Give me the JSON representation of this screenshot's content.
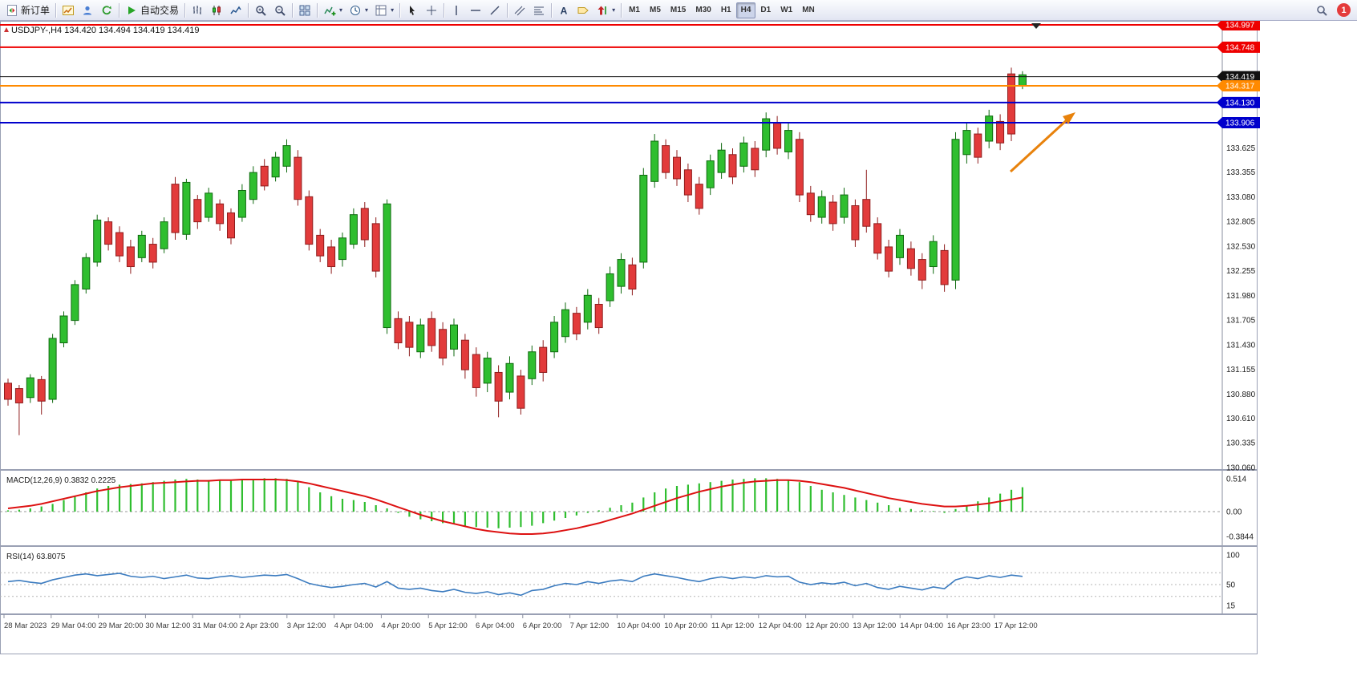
{
  "toolbar": {
    "new_order_label": "新订单",
    "auto_trading_label": "自动交易",
    "buttons": [
      {
        "name": "new-order-button",
        "icon": "new-order-icon",
        "label_key": "new_order_label"
      },
      {
        "sep": true
      },
      {
        "name": "new-chart-button",
        "icon": "new-chart-icon"
      },
      {
        "name": "profiles-button",
        "icon": "profiles-icon"
      },
      {
        "name": "market-watch-button",
        "icon": "market-watch-icon"
      },
      {
        "sep": true
      },
      {
        "name": "auto-trading-button",
        "icon": "play-icon",
        "label_key": "auto_trading_label"
      },
      {
        "sep": true
      },
      {
        "name": "bar-chart-button",
        "icon": "bar-chart-icon"
      },
      {
        "name": "candlestick-chart-button",
        "icon": "candlestick-icon"
      },
      {
        "name": "line-chart-button",
        "icon": "line-chart-icon"
      },
      {
        "sep": true
      },
      {
        "name": "zoom-in-button",
        "icon": "zoom-in-icon"
      },
      {
        "name": "zoom-out-button",
        "icon": "zoom-out-icon"
      },
      {
        "sep": true
      },
      {
        "name": "tile-windows-button",
        "icon": "tile-windows-icon"
      },
      {
        "sep": true
      },
      {
        "name": "indicators-button",
        "icon": "indicators-icon",
        "dropdown": true
      },
      {
        "name": "periods-button",
        "icon": "clock-icon",
        "dropdown": true
      },
      {
        "name": "templates-button",
        "icon": "template-icon",
        "dropdown": true
      },
      {
        "sep": true
      },
      {
        "name": "cursor-button",
        "icon": "cursor-icon"
      },
      {
        "name": "crosshair-button",
        "icon": "crosshair-icon"
      },
      {
        "sep": true
      },
      {
        "name": "vertical-line-button",
        "icon": "vertical-line-icon"
      },
      {
        "name": "horizontal-line-button",
        "icon": "horizontal-line-icon"
      },
      {
        "name": "trendline-button",
        "icon": "trendline-icon"
      },
      {
        "sep": true
      },
      {
        "name": "equidistant-channel-button",
        "icon": "channel-icon"
      },
      {
        "name": "fibonacci-button",
        "icon": "fibonacci-icon"
      },
      {
        "sep": true
      },
      {
        "name": "text-button",
        "icon": "text-icon"
      },
      {
        "name": "text-label-button",
        "icon": "label-icon"
      },
      {
        "name": "arrows-button",
        "icon": "arrow-tools-icon",
        "dropdown": true
      },
      {
        "sep": true
      }
    ],
    "timeframes": [
      "M1",
      "M5",
      "M15",
      "M30",
      "H1",
      "H4",
      "D1",
      "W1",
      "MN"
    ],
    "active_timeframe": "H4",
    "notification_count": "1"
  },
  "chart": {
    "title": "USDJPY-,H4 134.420 134.494 134.419 134.419",
    "colors": {
      "bull": "#2fbe2f",
      "bull_border": "#0f6a0f",
      "bear": "#e23b3b",
      "bear_border": "#8f1d1d",
      "macd_hist": "#2fbe2f",
      "macd_signal": "#dd1111",
      "rsi_line": "#3b7bbf",
      "arrow": "#e8820c",
      "level_red": "#ee0000",
      "level_orange": "#ff8a00",
      "level_blue": "#0000cc",
      "current_price": "#111111"
    },
    "levels": [
      {
        "price": 134.997,
        "label": "134.997",
        "color": "#ee0000",
        "width": 2
      },
      {
        "price": 134.748,
        "label": "134.748",
        "color": "#ee0000",
        "width": 2
      },
      {
        "price": 134.419,
        "label": "134.419",
        "color": "#111111",
        "width": 1
      },
      {
        "price": 134.317,
        "label": "134.317",
        "color": "#ff8a00",
        "width": 2
      },
      {
        "price": 134.13,
        "label": "134.130",
        "color": "#0000cc",
        "width": 2
      },
      {
        "price": 133.906,
        "label": "133.906",
        "color": "#0000cc",
        "width": 2
      }
    ],
    "price_axis": [
      "133.625",
      "133.355",
      "133.080",
      "132.805",
      "132.530",
      "132.255",
      "131.980",
      "131.705",
      "131.430",
      "131.155",
      "130.880",
      "130.610",
      "130.335",
      "130.060"
    ],
    "time_axis": [
      "28 Mar 2023",
      "29 Mar 04:00",
      "29 Mar 20:00",
      "30 Mar 12:00",
      "31 Mar 04:00",
      "2 Apr 23:00",
      "3 Apr 12:00",
      "4 Apr 04:00",
      "4 Apr 20:00",
      "5 Apr 12:00",
      "6 Apr 04:00",
      "6 Apr 20:00",
      "7 Apr 12:00",
      "10 Apr 04:00",
      "10 Apr 20:00",
      "11 Apr 12:00",
      "12 Apr 04:00",
      "12 Apr 20:00",
      "13 Apr 12:00",
      "14 Apr 04:00",
      "16 Apr 23:00",
      "17 Apr 12:00"
    ],
    "candles": [
      [
        131.05,
        131.0,
        130.82,
        130.75,
        "r"
      ],
      [
        130.98,
        130.94,
        130.78,
        130.42,
        "r"
      ],
      [
        131.1,
        131.06,
        130.84,
        130.78,
        "g"
      ],
      [
        131.08,
        131.04,
        130.8,
        130.65,
        "r"
      ],
      [
        131.55,
        131.5,
        130.82,
        130.78,
        "g"
      ],
      [
        131.8,
        131.75,
        131.45,
        131.4,
        "g"
      ],
      [
        132.15,
        132.1,
        131.7,
        131.65,
        "g"
      ],
      [
        132.45,
        132.4,
        132.05,
        132.0,
        "g"
      ],
      [
        132.88,
        132.82,
        132.35,
        132.3,
        "g"
      ],
      [
        132.85,
        132.8,
        132.55,
        132.48,
        "r"
      ],
      [
        132.75,
        132.68,
        132.42,
        132.35,
        "r"
      ],
      [
        132.6,
        132.52,
        132.3,
        132.22,
        "r"
      ],
      [
        132.7,
        132.65,
        132.4,
        132.35,
        "g"
      ],
      [
        132.62,
        132.55,
        132.35,
        132.28,
        "r"
      ],
      [
        132.85,
        132.8,
        132.5,
        132.45,
        "g"
      ],
      [
        133.3,
        133.22,
        132.68,
        132.6,
        "r"
      ],
      [
        133.28,
        133.24,
        132.66,
        132.6,
        "g"
      ],
      [
        133.1,
        133.05,
        132.8,
        132.72,
        "r"
      ],
      [
        133.18,
        133.12,
        132.85,
        132.8,
        "g"
      ],
      [
        133.05,
        133.0,
        132.78,
        132.7,
        "r"
      ],
      [
        132.95,
        132.9,
        132.62,
        132.55,
        "r"
      ],
      [
        133.22,
        133.15,
        132.85,
        132.8,
        "g"
      ],
      [
        133.42,
        133.35,
        133.05,
        133.0,
        "g"
      ],
      [
        133.5,
        133.42,
        133.2,
        133.15,
        "r"
      ],
      [
        133.58,
        133.52,
        133.3,
        133.25,
        "g"
      ],
      [
        133.72,
        133.65,
        133.42,
        133.35,
        "g"
      ],
      [
        133.6,
        133.52,
        133.05,
        132.98,
        "r"
      ],
      [
        133.15,
        133.08,
        132.55,
        132.48,
        "r"
      ],
      [
        132.72,
        132.65,
        132.42,
        132.35,
        "r"
      ],
      [
        132.6,
        132.52,
        132.3,
        132.22,
        "r"
      ],
      [
        132.68,
        132.62,
        132.38,
        132.3,
        "g"
      ],
      [
        132.95,
        132.88,
        132.55,
        132.5,
        "g"
      ],
      [
        133.02,
        132.95,
        132.6,
        132.52,
        "r"
      ],
      [
        132.85,
        132.78,
        132.25,
        132.18,
        "r"
      ],
      [
        133.05,
        133.0,
        131.62,
        131.55,
        "g"
      ],
      [
        131.8,
        131.72,
        131.45,
        131.38,
        "r"
      ],
      [
        131.75,
        131.68,
        131.4,
        131.3,
        "r"
      ],
      [
        131.72,
        131.65,
        131.35,
        131.28,
        "g"
      ],
      [
        131.8,
        131.72,
        131.42,
        131.35,
        "r"
      ],
      [
        131.68,
        131.6,
        131.28,
        131.2,
        "r"
      ],
      [
        131.72,
        131.65,
        131.38,
        131.3,
        "g"
      ],
      [
        131.55,
        131.48,
        131.15,
        131.05,
        "r"
      ],
      [
        131.4,
        131.32,
        130.95,
        130.85,
        "r"
      ],
      [
        131.35,
        131.28,
        131.0,
        130.9,
        "g"
      ],
      [
        131.2,
        131.12,
        130.8,
        130.62,
        "r"
      ],
      [
        131.3,
        131.22,
        130.9,
        130.82,
        "g"
      ],
      [
        131.15,
        131.08,
        130.72,
        130.65,
        "r"
      ],
      [
        131.42,
        131.35,
        131.05,
        130.98,
        "g"
      ],
      [
        131.48,
        131.4,
        131.12,
        131.02,
        "r"
      ],
      [
        131.75,
        131.68,
        131.35,
        131.28,
        "g"
      ],
      [
        131.9,
        131.82,
        131.52,
        131.45,
        "g"
      ],
      [
        131.85,
        131.78,
        131.55,
        131.48,
        "r"
      ],
      [
        132.05,
        131.98,
        131.68,
        131.6,
        "g"
      ],
      [
        131.95,
        131.88,
        131.62,
        131.55,
        "r"
      ],
      [
        132.3,
        132.22,
        131.92,
        131.85,
        "g"
      ],
      [
        132.45,
        132.38,
        132.08,
        132.0,
        "g"
      ],
      [
        132.4,
        132.32,
        132.05,
        131.98,
        "r"
      ],
      [
        133.4,
        133.32,
        132.35,
        132.28,
        "g"
      ],
      [
        133.78,
        133.7,
        133.25,
        133.18,
        "g"
      ],
      [
        133.72,
        133.65,
        133.35,
        133.28,
        "r"
      ],
      [
        133.6,
        133.52,
        133.28,
        133.2,
        "r"
      ],
      [
        133.45,
        133.38,
        133.1,
        133.02,
        "r"
      ],
      [
        133.3,
        133.22,
        132.95,
        132.88,
        "r"
      ],
      [
        133.55,
        133.48,
        133.18,
        133.1,
        "g"
      ],
      [
        133.68,
        133.6,
        133.35,
        133.28,
        "g"
      ],
      [
        133.62,
        133.55,
        133.3,
        133.22,
        "r"
      ],
      [
        133.75,
        133.68,
        133.42,
        133.35,
        "g"
      ],
      [
        133.7,
        133.62,
        133.38,
        133.3,
        "r"
      ],
      [
        134.02,
        133.95,
        133.6,
        133.52,
        "g"
      ],
      [
        133.98,
        133.9,
        133.62,
        133.55,
        "r"
      ],
      [
        133.9,
        133.82,
        133.58,
        133.5,
        "g"
      ],
      [
        133.8,
        133.72,
        133.1,
        133.02,
        "r"
      ],
      [
        133.2,
        133.12,
        132.88,
        132.8,
        "r"
      ],
      [
        133.15,
        133.08,
        132.85,
        132.78,
        "g"
      ],
      [
        133.1,
        133.02,
        132.78,
        132.7,
        "r"
      ],
      [
        133.18,
        133.1,
        132.85,
        132.78,
        "g"
      ],
      [
        133.05,
        132.98,
        132.6,
        132.52,
        "r"
      ],
      [
        133.38,
        133.05,
        132.75,
        132.68,
        "r"
      ],
      [
        132.85,
        132.78,
        132.45,
        132.38,
        "r"
      ],
      [
        132.6,
        132.52,
        132.25,
        132.18,
        "r"
      ],
      [
        132.72,
        132.65,
        132.4,
        132.32,
        "g"
      ],
      [
        132.58,
        132.5,
        132.28,
        132.2,
        "r"
      ],
      [
        132.45,
        132.38,
        132.15,
        132.05,
        "r"
      ],
      [
        132.65,
        132.58,
        132.3,
        132.22,
        "g"
      ],
      [
        132.55,
        132.48,
        132.1,
        132.02,
        "r"
      ],
      [
        133.8,
        133.72,
        132.15,
        132.05,
        "g"
      ],
      [
        133.9,
        133.82,
        133.55,
        133.45,
        "g"
      ],
      [
        133.85,
        133.78,
        133.52,
        133.45,
        "r"
      ],
      [
        134.05,
        133.98,
        133.7,
        133.62,
        "g"
      ],
      [
        134.0,
        133.92,
        133.68,
        133.6,
        "r"
      ],
      [
        134.52,
        134.45,
        133.78,
        133.7,
        "r"
      ],
      [
        134.48,
        134.44,
        134.32,
        134.28,
        "g"
      ]
    ],
    "macd": {
      "label": "MACD(12,26,9) 0.3832 0.2225",
      "axis": [
        "0.514",
        "0.00",
        "-0.3844"
      ],
      "histogram": [
        0.02,
        0.03,
        0.05,
        0.08,
        0.12,
        0.18,
        0.24,
        0.3,
        0.36,
        0.4,
        0.42,
        0.43,
        0.44,
        0.46,
        0.48,
        0.5,
        0.51,
        0.5,
        0.49,
        0.5,
        0.48,
        0.5,
        0.51,
        0.52,
        0.52,
        0.51,
        0.46,
        0.38,
        0.3,
        0.24,
        0.2,
        0.18,
        0.15,
        0.1,
        0.05,
        -0.02,
        -0.08,
        -0.12,
        -0.15,
        -0.18,
        -0.2,
        -0.22,
        -0.24,
        -0.25,
        -0.26,
        -0.25,
        -0.24,
        -0.22,
        -0.18,
        -0.14,
        -0.1,
        -0.06,
        -0.02,
        0.02,
        0.06,
        0.1,
        0.14,
        0.22,
        0.3,
        0.36,
        0.4,
        0.42,
        0.44,
        0.46,
        0.48,
        0.5,
        0.51,
        0.52,
        0.52,
        0.51,
        0.5,
        0.46,
        0.4,
        0.34,
        0.3,
        0.26,
        0.22,
        0.18,
        0.14,
        0.1,
        0.06,
        0.04,
        0.02,
        0.01,
        -0.02,
        0.04,
        0.1,
        0.16,
        0.22,
        0.28,
        0.34,
        0.38
      ],
      "signal": [
        0.05,
        0.07,
        0.09,
        0.12,
        0.16,
        0.2,
        0.24,
        0.28,
        0.32,
        0.35,
        0.38,
        0.4,
        0.42,
        0.44,
        0.45,
        0.46,
        0.47,
        0.48,
        0.48,
        0.49,
        0.49,
        0.5,
        0.5,
        0.5,
        0.5,
        0.49,
        0.47,
        0.44,
        0.4,
        0.36,
        0.32,
        0.28,
        0.24,
        0.19,
        0.13,
        0.07,
        0.01,
        -0.05,
        -0.1,
        -0.15,
        -0.19,
        -0.23,
        -0.27,
        -0.3,
        -0.32,
        -0.34,
        -0.35,
        -0.35,
        -0.34,
        -0.32,
        -0.29,
        -0.26,
        -0.22,
        -0.18,
        -0.13,
        -0.08,
        -0.03,
        0.03,
        0.09,
        0.15,
        0.21,
        0.26,
        0.31,
        0.35,
        0.39,
        0.42,
        0.45,
        0.47,
        0.48,
        0.49,
        0.49,
        0.48,
        0.46,
        0.43,
        0.4,
        0.37,
        0.33,
        0.29,
        0.25,
        0.21,
        0.18,
        0.15,
        0.12,
        0.1,
        0.08,
        0.08,
        0.09,
        0.11,
        0.13,
        0.16,
        0.19,
        0.22
      ]
    },
    "rsi": {
      "label": "RSI(14) 63.8075",
      "axis": [
        "100",
        "50",
        "15"
      ],
      "levels": [
        70,
        50,
        30
      ],
      "values": [
        55,
        57,
        54,
        52,
        58,
        62,
        66,
        68,
        65,
        67,
        69,
        64,
        62,
        64,
        60,
        63,
        66,
        61,
        60,
        63,
        65,
        62,
        64,
        66,
        65,
        67,
        60,
        52,
        48,
        45,
        47,
        50,
        52,
        46,
        55,
        44,
        42,
        44,
        40,
        38,
        42,
        37,
        35,
        38,
        33,
        36,
        32,
        40,
        42,
        48,
        52,
        50,
        55,
        52,
        56,
        58,
        55,
        64,
        68,
        65,
        62,
        58,
        55,
        60,
        63,
        60,
        63,
        61,
        65,
        63,
        64,
        54,
        50,
        53,
        51,
        54,
        48,
        52,
        45,
        42,
        47,
        44,
        41,
        46,
        43,
        58,
        63,
        60,
        65,
        62,
        66,
        63.8
      ]
    }
  }
}
